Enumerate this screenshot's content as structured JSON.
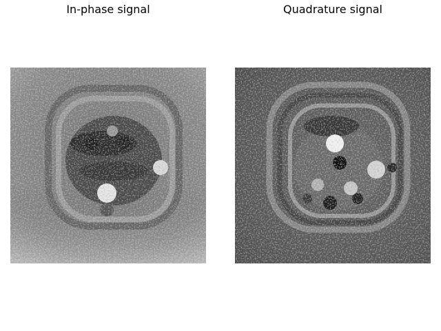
{
  "panels": [
    {
      "title": "In-phase signal"
    },
    {
      "title": "Quadrature signal"
    }
  ]
}
